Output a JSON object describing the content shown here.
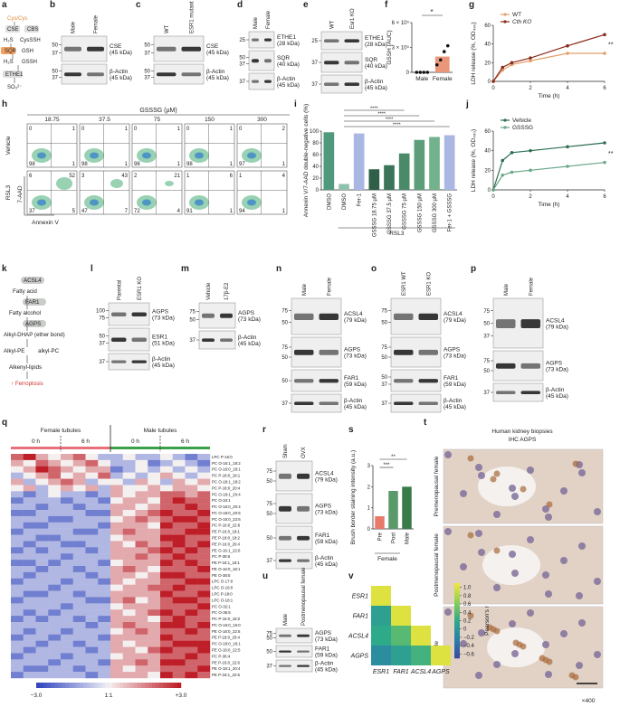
{
  "panel_letters": [
    "a",
    "b",
    "c",
    "d",
    "e",
    "f",
    "g",
    "h",
    "i",
    "j",
    "k",
    "l",
    "m",
    "n",
    "o",
    "p",
    "q",
    "r",
    "s",
    "t",
    "u",
    "v"
  ],
  "a": {
    "nodes": [
      "Cys/Cys",
      "CSE",
      "CBS",
      "H₂S",
      "CysSSH",
      "SQR",
      "GSH",
      "GSSH",
      "H₂S",
      "ETHE1",
      "SO₃²⁻"
    ]
  },
  "b": {
    "lanes": [
      "Male",
      "Female"
    ],
    "rows": [
      {
        "markers": [
          50,
          37
        ],
        "name": "CSE",
        "size": "(45 kDa)"
      },
      {
        "markers": [
          50,
          37
        ],
        "name": "β-Actin",
        "size": "(45 kDa)"
      }
    ]
  },
  "c": {
    "lanes": [
      "WT",
      "ESR1 mutant"
    ],
    "rows": [
      {
        "markers": [
          50,
          37
        ],
        "name": "CSE",
        "size": "(45 kDa)"
      },
      {
        "markers": [
          50,
          37
        ],
        "name": "β-Actin",
        "size": "(45 kDa)"
      }
    ]
  },
  "d": {
    "lanes": [
      "Male",
      "Female"
    ],
    "rows": [
      {
        "markers": [
          25
        ],
        "name": "ETHE1",
        "size": "(28 kDa)"
      },
      {
        "markers": [
          50,
          37
        ],
        "name": "SQR",
        "size": "(40 kDa)"
      },
      {
        "markers": [
          37
        ],
        "name": "β-Actin",
        "size": "(45 kDa)"
      }
    ]
  },
  "e": {
    "lanes": [
      "WT",
      "Esr1 KO"
    ],
    "rows": [
      {
        "markers": [
          25
        ],
        "name": "ETHE1",
        "size": "(28 kDa)"
      },
      {
        "markers": [
          37
        ],
        "name": "SQR",
        "size": "(40 kDa)"
      },
      {
        "markers": [
          37
        ],
        "name": "β-Actin",
        "size": "(45 kDa)"
      }
    ]
  },
  "f": {
    "type": "bar",
    "y_label": "GSSH (AUC)",
    "categories": [
      "Male",
      "Female"
    ],
    "values": [
      0,
      190000
    ],
    "colors": [
      "#e9967a",
      "#e9967a"
    ],
    "points": [
      [
        0,
        0,
        0,
        0
      ],
      [
        90000,
        150000,
        250000,
        320000
      ]
    ],
    "ylim": [
      0,
      600000
    ],
    "yticks": [
      0,
      {
        "value": 300000,
        "label": "3 × 10⁵"
      },
      {
        "value": 600000,
        "label": "6 × 10⁵"
      }
    ],
    "annotation": "*"
  },
  "g": {
    "type": "line",
    "x_label": "Time (h)",
    "y_label": "LDH release (%, OD₄₉₀)",
    "x": [
      0,
      0.5,
      1,
      2,
      4,
      6
    ],
    "series": [
      {
        "name": "WT",
        "color": "#e3a06a",
        "values": [
          0,
          12,
          18,
          22,
          30,
          30
        ]
      },
      {
        "name": "Cth KO",
        "color": "#8b2b1a",
        "values": [
          0,
          15,
          20,
          25,
          38,
          50
        ]
      }
    ],
    "xlim": [
      0,
      6
    ],
    "xticks": [
      0,
      2,
      4,
      6
    ],
    "ylim": [
      0,
      60
    ],
    "yticks": [
      0,
      20,
      40,
      60
    ],
    "annotation": "**"
  },
  "h": {
    "header": "GSSSG (µM)",
    "concentrations": [
      "18.75",
      "37.5",
      "75",
      "150",
      "300"
    ],
    "rows": [
      "Vehicle",
      "RSL3"
    ],
    "y_label": "7-AAD",
    "x_label": "Annexin V",
    "quadrants": [
      [
        [
          0,
          1,
          98,
          1
        ],
        [
          0,
          1,
          98,
          1
        ],
        [
          0,
          1,
          98,
          1
        ],
        [
          0,
          1,
          98,
          1
        ],
        [
          0,
          2,
          97,
          1
        ]
      ],
      [
        [
          6,
          52,
          37,
          5
        ],
        [
          3,
          43,
          47,
          7
        ],
        [
          2,
          21,
          72,
          4
        ],
        [
          1,
          6,
          91,
          1
        ],
        [
          1,
          4,
          94,
          1
        ]
      ]
    ]
  },
  "i": {
    "type": "bar",
    "y_label": "Annexin V/7-AAD double-negative cells (%)",
    "categories": [
      "DMSO",
      "DMSO",
      "Fer-1",
      "GSSSG 18.75 µM",
      "GSSSG 37.5 µM",
      "GSSSG 75 µM",
      "GSSSG 150 µM",
      "GSSSG 300 µM",
      "Fer-1 + GSSSG"
    ],
    "values": [
      98,
      10,
      96,
      35,
      42,
      62,
      85,
      90,
      93
    ],
    "colors": [
      "#4f9a7c",
      "#8fc2ad",
      "#a9b7e2",
      "#2f5f48",
      "#3b7458",
      "#4a8a68",
      "#5d9e7a",
      "#72b28d",
      "#a9b7e2"
    ],
    "ylim": [
      0,
      100
    ],
    "yticks": [
      0,
      20,
      40,
      60,
      80,
      100
    ],
    "group_label": "RSL3",
    "significance": [
      "****",
      "****",
      "****",
      "****"
    ]
  },
  "j": {
    "type": "line",
    "x_label": "Time (h)",
    "y_label": "LDH release (%, OD₄₉₀)",
    "x": [
      0,
      0.5,
      1,
      2,
      4,
      6
    ],
    "series": [
      {
        "name": "Vehicle",
        "color": "#2e6e52",
        "values": [
          0,
          30,
          38,
          40,
          44,
          48
        ]
      },
      {
        "name": "GSSSG",
        "color": "#6aa88a",
        "values": [
          0,
          15,
          18,
          20,
          24,
          28
        ]
      }
    ],
    "xlim": [
      0,
      6
    ],
    "xticks": [
      0,
      2,
      4,
      6
    ],
    "ylim": [
      0,
      60
    ],
    "yticks": [
      0,
      20,
      40,
      60
    ],
    "annotation": "**"
  },
  "k": {
    "nodes": [
      "ACSL4",
      "Fatty acid",
      "FAR1",
      "Fatty alcohol",
      "AGPS",
      "Alkyl-DHAP (ether bond)",
      "Alkyl-PE",
      "alkyl-PC",
      "Alkenyl-lipids",
      "↑ Ferroptosis"
    ]
  },
  "l": {
    "lanes": [
      "Parental",
      "ESR1 KO"
    ],
    "rows": [
      {
        "markers": [
          100,
          75
        ],
        "name": "AGPS",
        "size": "(73 kDa)"
      },
      {
        "markers": [
          50,
          37
        ],
        "name": "ESR1",
        "size": "(51 kDa)"
      },
      {
        "markers": [
          37
        ],
        "name": "β-Actin",
        "size": "(45 kDa)"
      }
    ]
  },
  "m": {
    "lanes": [
      "Vehicle",
      "17β-E2"
    ],
    "rows": [
      {
        "markers": [
          75,
          50
        ],
        "name": "AGPS",
        "size": "(73 kDa)"
      },
      {
        "markers": [
          37
        ],
        "name": "β-Actin",
        "size": "(45 kDa)"
      }
    ]
  },
  "n": {
    "lanes": [
      "Male",
      "Female"
    ],
    "rows": [
      {
        "markers": [
          75,
          50
        ],
        "name": "ACSL4",
        "size": "(79 kDa)"
      },
      {
        "markers": [
          75,
          50
        ],
        "name": "AGPS",
        "size": "(73 kDa)"
      },
      {
        "markers": [
          50
        ],
        "name": "FAR1",
        "size": "(59 kDa)"
      },
      {
        "markers": [
          37
        ],
        "name": "β-Actin",
        "size": "(45 kDa)"
      }
    ]
  },
  "o": {
    "lanes": [
      "ESR1 WT",
      "ESR1 KO"
    ],
    "rows": [
      {
        "markers": [
          75,
          50
        ],
        "name": "ACSL4",
        "size": "(79 kDa)"
      },
      {
        "markers": [
          75,
          50
        ],
        "name": "AGPS",
        "size": "(73 kDa)"
      },
      {
        "markers": [
          50,
          37
        ],
        "name": "FAR1",
        "size": "(59 kDa)"
      },
      {
        "markers": [
          37
        ],
        "name": "β-Actin",
        "size": "(45 kDa)"
      }
    ]
  },
  "p": {
    "lanes": [
      "Male",
      "Female"
    ],
    "rows": [
      {
        "markers": [
          75,
          50,
          37
        ],
        "name": "ACSL4",
        "size": "(79 kDa)"
      },
      {
        "markers": [
          75,
          50
        ],
        "name": "AGPS",
        "size": "(73 kDa)"
      },
      {
        "markers": [
          37
        ],
        "name": "β-Actin",
        "size": "(45 kDa)"
      }
    ]
  },
  "q": {
    "type": "heatmap",
    "group_labels": [
      "Female tubules",
      "Male tubules"
    ],
    "time_labels": [
      "0 h",
      "6 h",
      "0 h",
      "6 h"
    ],
    "scale_labels": [
      "−3.0",
      "1:1",
      "+3.0"
    ],
    "clim": [
      -3,
      3
    ],
    "rows": [
      "LPC P-16:0",
      "PC O-16:1_18:2",
      "PC O-16:0_18:1",
      "PC P-18:0_18:1",
      "PC O-18:1_18:2",
      "PC P-18:0_20:4",
      "PC O-18:1_20:4",
      "PC O-34:1",
      "PC O-16:0_20:4",
      "PC O-18:0_20:5",
      "PC O-16:0_22:6",
      "PC P-16:0_22:6",
      "PE P-16:0_18:1",
      "PE P-18:0_18:2",
      "PE P-16:0_20:4",
      "PE O-16:1_22:6",
      "PC P-38:6",
      "PE P-18:1_18:1",
      "PE O-16:0_18:1",
      "PE O-38:5",
      "LPC O-17:0",
      "LPC O-16:0",
      "LPC P-18:0",
      "LPC O-18:1",
      "PC O-32:1",
      "PC O-36:5",
      "PC P-16:0_18:2",
      "PC O-16:0_16:0",
      "PE O-18:0_22:6",
      "PE P-18:0_20:4",
      "PC O-18:0_18:1",
      "PE O-16:0_22:5",
      "PC P-36:4",
      "PE P-16:0_22:6",
      "PE O-18:1_20:4",
      "PE P-18:1_22:6"
    ],
    "values": [
      [
        2,
        3,
        1,
        0,
        1,
        2,
        0,
        -1,
        -1,
        0,
        -1,
        -1,
        0,
        -1,
        -2,
        -1
      ],
      [
        1,
        0,
        2,
        1,
        0,
        1,
        2,
        0,
        -1,
        -1,
        0,
        -2,
        -1,
        0,
        -1,
        -2
      ],
      [
        0,
        1,
        3,
        2,
        1,
        0,
        1,
        1,
        -2,
        -1,
        0,
        -1,
        0,
        -1,
        0,
        -1
      ],
      [
        -1,
        0,
        1,
        2,
        0,
        1,
        0,
        2,
        -1,
        0,
        -1,
        0,
        1,
        0,
        -1,
        0
      ],
      [
        1,
        -1,
        0,
        1,
        2,
        1,
        -1,
        0,
        0,
        -1,
        1,
        0,
        -1,
        1,
        0,
        1
      ],
      [
        0,
        1,
        -1,
        0,
        1,
        0,
        1,
        -1,
        1,
        0,
        0,
        1,
        0,
        1,
        1,
        0
      ],
      [
        -1,
        -2,
        -1,
        0,
        -1,
        -1,
        -2,
        -1,
        1,
        0,
        1,
        1,
        2,
        2,
        1,
        2
      ],
      [
        -2,
        -1,
        -1,
        -1,
        -2,
        -1,
        -1,
        -2,
        0,
        1,
        1,
        0,
        2,
        3,
        2,
        2
      ],
      [
        -1,
        -1,
        -2,
        -1,
        -1,
        -2,
        -1,
        -1,
        1,
        1,
        0,
        1,
        2,
        2,
        3,
        2
      ],
      [
        -2,
        -2,
        -1,
        -1,
        -1,
        -1,
        -2,
        -2,
        1,
        0,
        1,
        2,
        3,
        2,
        2,
        3
      ],
      [
        -1,
        -1,
        -1,
        -2,
        -2,
        -1,
        -1,
        -1,
        0,
        1,
        2,
        1,
        2,
        3,
        3,
        2
      ],
      [
        -1,
        -2,
        -2,
        -1,
        -1,
        -1,
        -1,
        -2,
        1,
        1,
        1,
        0,
        3,
        2,
        2,
        3
      ],
      [
        -2,
        -1,
        -1,
        -1,
        -1,
        -2,
        -2,
        -1,
        1,
        2,
        1,
        1,
        2,
        2,
        3,
        3
      ],
      [
        -1,
        -1,
        -2,
        -2,
        -1,
        -1,
        -1,
        -1,
        0,
        1,
        1,
        1,
        3,
        3,
        2,
        2
      ],
      [
        -1,
        -2,
        -1,
        -1,
        -2,
        -2,
        -1,
        -1,
        1,
        0,
        2,
        1,
        2,
        3,
        2,
        3
      ],
      [
        -2,
        -1,
        -2,
        -1,
        -1,
        -1,
        -2,
        -1,
        1,
        1,
        1,
        2,
        3,
        2,
        3,
        2
      ],
      [
        -1,
        -1,
        -1,
        -1,
        -2,
        -1,
        -1,
        -1,
        1,
        1,
        2,
        1,
        2,
        3,
        2,
        2
      ],
      [
        -2,
        -2,
        -1,
        -2,
        -1,
        -1,
        -1,
        -2,
        0,
        1,
        1,
        1,
        3,
        2,
        3,
        2
      ],
      [
        -1,
        -1,
        -2,
        -1,
        -1,
        -2,
        -1,
        -1,
        1,
        2,
        1,
        0,
        2,
        2,
        2,
        3
      ],
      [
        -1,
        -2,
        -1,
        -1,
        -1,
        -1,
        -2,
        -1,
        1,
        1,
        0,
        1,
        3,
        3,
        2,
        2
      ],
      [
        -2,
        -1,
        -1,
        -1,
        -2,
        -1,
        -1,
        -2,
        1,
        0,
        1,
        1,
        2,
        2,
        3,
        3
      ],
      [
        -1,
        -1,
        -1,
        -2,
        -1,
        -1,
        -1,
        -1,
        0,
        1,
        1,
        2,
        2,
        3,
        2,
        2
      ],
      [
        -1,
        -2,
        -2,
        -1,
        -1,
        -2,
        -1,
        -1,
        1,
        1,
        1,
        1,
        3,
        2,
        2,
        3
      ],
      [
        -2,
        -1,
        -1,
        -1,
        -1,
        -1,
        -2,
        -2,
        1,
        2,
        0,
        1,
        2,
        3,
        3,
        2
      ],
      [
        -1,
        -1,
        -1,
        -1,
        -2,
        -1,
        -1,
        -1,
        0,
        1,
        1,
        1,
        2,
        2,
        2,
        3
      ],
      [
        -1,
        -2,
        -1,
        -2,
        -1,
        -1,
        -1,
        -1,
        1,
        0,
        1,
        2,
        3,
        2,
        3,
        2
      ],
      [
        -2,
        -1,
        -2,
        -1,
        -1,
        -2,
        -1,
        -2,
        1,
        1,
        1,
        0,
        2,
        3,
        2,
        2
      ],
      [
        -1,
        -1,
        -1,
        -1,
        -1,
        -1,
        -2,
        -1,
        1,
        2,
        1,
        1,
        3,
        3,
        2,
        3
      ],
      [
        -1,
        -2,
        -1,
        -1,
        -2,
        -1,
        -1,
        -1,
        0,
        1,
        2,
        1,
        2,
        2,
        3,
        2
      ],
      [
        -2,
        -1,
        -1,
        -2,
        -1,
        -1,
        -1,
        -2,
        1,
        1,
        1,
        1,
        3,
        2,
        2,
        2
      ],
      [
        -1,
        -1,
        -2,
        -1,
        -1,
        -2,
        -1,
        -1,
        1,
        0,
        1,
        1,
        2,
        3,
        3,
        3
      ],
      [
        -1,
        -2,
        -1,
        -1,
        -1,
        -1,
        -2,
        -1,
        1,
        1,
        0,
        2,
        3,
        2,
        2,
        3
      ],
      [
        -2,
        -1,
        -1,
        -1,
        -2,
        -1,
        -1,
        -1,
        0,
        1,
        1,
        1,
        2,
        2,
        3,
        2
      ],
      [
        -1,
        -1,
        -1,
        -2,
        -1,
        -1,
        -1,
        -2,
        1,
        1,
        2,
        1,
        3,
        3,
        2,
        2
      ],
      [
        -1,
        -2,
        -2,
        -1,
        -1,
        -2,
        -1,
        -1,
        1,
        0,
        1,
        1,
        2,
        2,
        2,
        3
      ],
      [
        -2,
        -1,
        -1,
        -1,
        -1,
        -1,
        -2,
        -1,
        1,
        1,
        1,
        0,
        3,
        2,
        3,
        2
      ]
    ]
  },
  "r": {
    "lanes": [
      "Sham",
      "OVX"
    ],
    "rows": [
      {
        "markers": [
          75,
          50
        ],
        "name": "ACSL4",
        "size": "(79 kDa)"
      },
      {
        "markers": [
          75,
          50
        ],
        "name": "AGPS",
        "size": "(73 kDa)"
      },
      {
        "markers": [
          50
        ],
        "name": "FAR1",
        "size": "(59 kDa)"
      },
      {
        "markers": [
          37
        ],
        "name": "β-Actin",
        "size": "(45 kDa)"
      }
    ]
  },
  "s": {
    "type": "bar",
    "y_label": "Brush border staining intensity (a.u.)",
    "categories": [
      "Pre",
      "Post",
      "Male"
    ],
    "values": [
      0.6,
      1.8,
      2.0
    ],
    "colors": [
      "#e87a6a",
      "#5a9a6a",
      "#3a7a4a"
    ],
    "ylim": [
      0,
      3
    ],
    "yticks": [
      0,
      1,
      2,
      3
    ],
    "group_label": "Female",
    "significance": [
      "**",
      "***"
    ]
  },
  "t": {
    "title": [
      "Human kidney biopsies",
      "IHC AGPS"
    ],
    "rows": [
      "Premenopausal female",
      "Postmenopausal female",
      "Male"
    ],
    "magnification": "×400"
  },
  "u": {
    "lanes": [
      "Male",
      "Postmenopausal female"
    ],
    "rows": [
      {
        "markers": [
          75,
          50
        ],
        "name": "AGPS",
        "size": "(73 kDa)"
      },
      {
        "markers": [
          50
        ],
        "name": "FAR1",
        "size": "(59 kDa)"
      },
      {
        "markers": [
          37
        ],
        "name": "β-Actin",
        "size": "(45 kDa)"
      }
    ]
  },
  "v": {
    "type": "heatmap",
    "rows": [
      "ESR1",
      "FAR1",
      "ACSL4",
      "AGPS"
    ],
    "columns": [
      "ESR1",
      "FAR1",
      "ACSL4",
      "AGPS"
    ],
    "values": [
      [
        1,
        null,
        null,
        null
      ],
      [
        0.1,
        1,
        null,
        null
      ],
      [
        0.2,
        0.4,
        1,
        null
      ],
      [
        -0.1,
        0.1,
        0.3,
        1
      ]
    ],
    "clim": [
      -0.7,
      1.1
    ],
    "colorbar_ticks": [
      {
        "value": 1,
        "label": "1.0"
      },
      0.8,
      0.6,
      0.4,
      0.2,
      0,
      {
        "value": -0.2,
        "label": "−0.2"
      },
      {
        "value": -0.4,
        "label": "−0.4"
      },
      {
        "value": -0.6,
        "label": "−0.6"
      }
    ],
    "colorbar_label": "Pearson's r"
  }
}
